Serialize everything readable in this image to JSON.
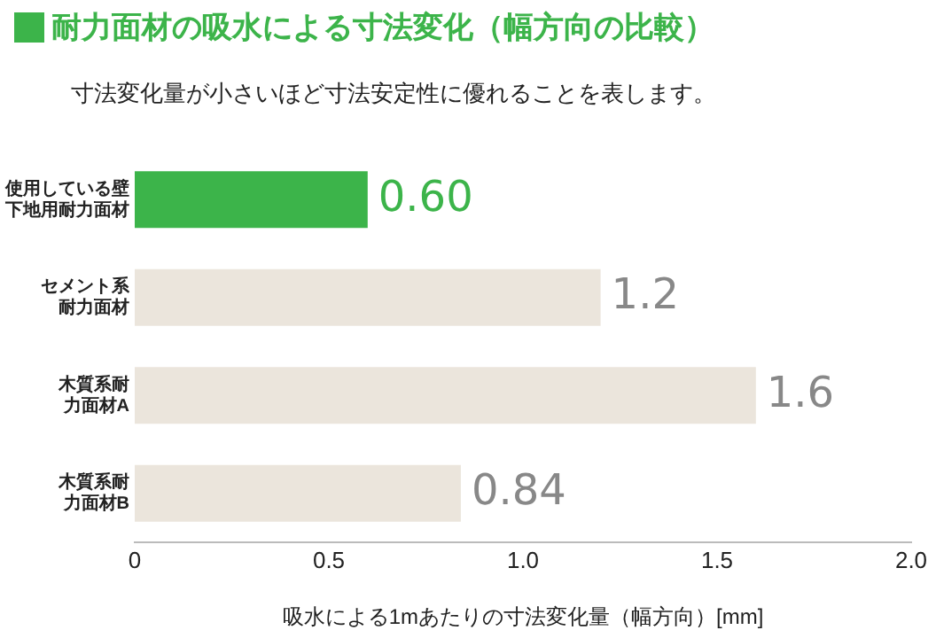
{
  "chart_data": {
    "type": "bar",
    "orientation": "horizontal",
    "title": "耐力面材の吸水による寸法変化（幅方向の比較）",
    "subtitle": "寸法変化量が小さいほど寸法安定性に優れることを表します。",
    "xlabel": "吸水による1mあたりの寸法変化量（幅方向）[mm]",
    "categories": [
      "使用している壁下地用耐力面材",
      "セメント系耐力面材",
      "木質系耐力面材A",
      "木質系耐力面材B"
    ],
    "values": [
      0.6,
      1.2,
      1.6,
      0.84
    ],
    "colors": [
      "#3cb44a",
      "#ebe5dc",
      "#ebe5dc",
      "#ebe5dc"
    ],
    "value_labels": [
      "0.60",
      "1.2",
      "1.6",
      "0.84"
    ],
    "xlim": [
      0,
      2.0
    ],
    "xticks": [
      {
        "value": 0,
        "label": "0"
      },
      {
        "value": 0.5,
        "label": "0.5"
      },
      {
        "value": 1.0,
        "label": "1.0"
      },
      {
        "value": 1.5,
        "label": "1.5"
      },
      {
        "value": 2.0,
        "label": "2.0"
      }
    ],
    "grid": false,
    "legend": false
  }
}
